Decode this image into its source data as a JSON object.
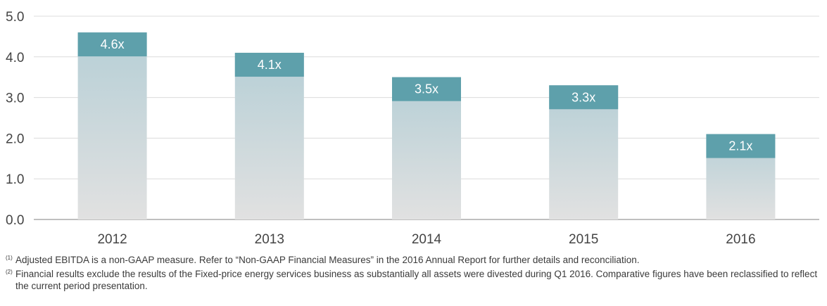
{
  "chart_data": {
    "type": "bar",
    "categories": [
      "2012",
      "2013",
      "2014",
      "2015",
      "2016"
    ],
    "values": [
      4.6,
      4.1,
      3.5,
      3.3,
      2.1
    ],
    "data_labels": [
      "4.6x",
      "4.1x",
      "3.5x",
      "3.3x",
      "2.1x"
    ],
    "yticks": [
      "0.0",
      "1.0",
      "2.0",
      "3.0",
      "4.0",
      "5.0"
    ],
    "ylim": [
      0,
      5
    ],
    "grid": true,
    "colors": {
      "bar_top": "#b6cfd6",
      "bar_bottom": "#e1e1e1",
      "label_box": "#5ea0ab",
      "grid": "#dcdcdc",
      "axis": "#999999"
    }
  },
  "footnotes": [
    {
      "mark": "(1)",
      "text": "Adjusted EBITDA is a non-GAAP measure. Refer to “Non-GAAP Financial Measures” in the 2016 Annual Report for further details and reconciliation."
    },
    {
      "mark": "(2)",
      "text": "Financial results exclude the results of the Fixed-price energy services business as substantially all assets were divested during Q1 2016. Comparative figures have been reclassified to reflect the current period presentation."
    }
  ]
}
